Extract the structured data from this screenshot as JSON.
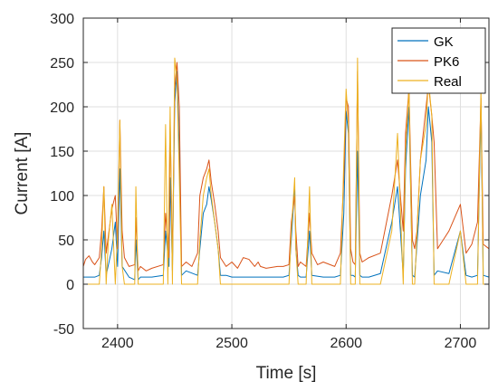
{
  "chart_data": {
    "type": "line",
    "title": "",
    "xlabel": "Time [s]",
    "ylabel": "Current [A]",
    "xlim": [
      2370,
      2725
    ],
    "ylim": [
      -50,
      300
    ],
    "xticks": [
      2400,
      2500,
      2600,
      2700
    ],
    "yticks": [
      -50,
      0,
      50,
      100,
      150,
      200,
      250,
      300
    ],
    "grid": true,
    "legend_position": "top-right",
    "series": [
      {
        "name": "GK",
        "color": "#0072bd",
        "x": [
          2370,
          2380,
          2384,
          2386,
          2388,
          2390,
          2395,
          2398,
          2400,
          2402,
          2404,
          2410,
          2415,
          2416,
          2418,
          2420,
          2430,
          2440,
          2442,
          2445,
          2446,
          2448,
          2450,
          2452,
          2454,
          2456,
          2460,
          2470,
          2472,
          2475,
          2478,
          2480,
          2482,
          2485,
          2488,
          2490,
          2495,
          2500,
          2510,
          2520,
          2530,
          2545,
          2550,
          2552,
          2555,
          2556,
          2558,
          2560,
          2565,
          2568,
          2570,
          2580,
          2590,
          2595,
          2598,
          2600,
          2602,
          2604,
          2606,
          2608,
          2610,
          2612,
          2614,
          2620,
          2630,
          2640,
          2645,
          2650,
          2652,
          2655,
          2658,
          2660,
          2665,
          2670,
          2672,
          2675,
          2677,
          2680,
          2690,
          2700,
          2705,
          2710,
          2715,
          2718,
          2720,
          2725
        ],
        "y": [
          8,
          8,
          10,
          30,
          60,
          10,
          40,
          70,
          20,
          130,
          20,
          8,
          5,
          50,
          5,
          8,
          8,
          10,
          60,
          20,
          120,
          15,
          205,
          240,
          150,
          10,
          15,
          10,
          40,
          80,
          90,
          110,
          95,
          70,
          40,
          10,
          10,
          8,
          8,
          8,
          8,
          8,
          10,
          50,
          110,
          40,
          10,
          8,
          8,
          60,
          10,
          8,
          8,
          10,
          80,
          195,
          170,
          10,
          10,
          8,
          150,
          10,
          8,
          8,
          12,
          70,
          110,
          10,
          130,
          200,
          10,
          8,
          100,
          140,
          200,
          160,
          10,
          15,
          12,
          60,
          10,
          8,
          10,
          200,
          10,
          8
        ],
        "width": 1.0
      },
      {
        "name": "PK6",
        "color": "#d95319",
        "x": [
          2370,
          2372,
          2375,
          2378,
          2380,
          2384,
          2386,
          2388,
          2390,
          2395,
          2398,
          2400,
          2402,
          2404,
          2406,
          2410,
          2415,
          2416,
          2418,
          2420,
          2425,
          2430,
          2440,
          2442,
          2445,
          2446,
          2448,
          2450,
          2452,
          2454,
          2456,
          2460,
          2465,
          2470,
          2472,
          2475,
          2478,
          2480,
          2482,
          2485,
          2488,
          2490,
          2495,
          2500,
          2505,
          2510,
          2515,
          2520,
          2523,
          2525,
          2530,
          2540,
          2545,
          2550,
          2552,
          2555,
          2556,
          2558,
          2560,
          2565,
          2568,
          2570,
          2575,
          2580,
          2590,
          2595,
          2598,
          2600,
          2602,
          2604,
          2606,
          2608,
          2610,
          2612,
          2614,
          2620,
          2630,
          2640,
          2645,
          2650,
          2652,
          2655,
          2658,
          2660,
          2662,
          2665,
          2670,
          2672,
          2675,
          2677,
          2680,
          2685,
          2690,
          2700,
          2705,
          2710,
          2715,
          2718,
          2720,
          2725
        ],
        "y": [
          20,
          28,
          32,
          25,
          22,
          30,
          60,
          110,
          35,
          85,
          100,
          40,
          185,
          60,
          30,
          20,
          22,
          75,
          15,
          20,
          15,
          18,
          22,
          80,
          30,
          185,
          25,
          220,
          250,
          200,
          20,
          25,
          20,
          35,
          100,
          120,
          130,
          140,
          115,
          90,
          60,
          30,
          20,
          25,
          18,
          30,
          28,
          20,
          25,
          20,
          18,
          20,
          20,
          22,
          70,
          100,
          60,
          20,
          25,
          20,
          80,
          35,
          22,
          25,
          20,
          35,
          120,
          210,
          200,
          40,
          25,
          22,
          240,
          35,
          25,
          30,
          35,
          100,
          140,
          60,
          170,
          220,
          50,
          40,
          60,
          140,
          200,
          225,
          190,
          160,
          40,
          50,
          60,
          90,
          35,
          45,
          70,
          210,
          45,
          40
        ],
        "width": 1.0
      },
      {
        "name": "Real",
        "color": "#edb120",
        "x": [
          2370,
          2380,
          2384,
          2386,
          2388,
          2390,
          2392,
          2395,
          2398,
          2400,
          2402,
          2404,
          2406,
          2410,
          2415,
          2416,
          2418,
          2420,
          2430,
          2440,
          2442,
          2444,
          2446,
          2448,
          2450,
          2452,
          2454,
          2456,
          2460,
          2470,
          2472,
          2475,
          2478,
          2480,
          2482,
          2485,
          2488,
          2490,
          2495,
          2500,
          2510,
          2520,
          2530,
          2545,
          2550,
          2552,
          2555,
          2556,
          2558,
          2560,
          2565,
          2568,
          2570,
          2580,
          2590,
          2595,
          2598,
          2600,
          2602,
          2604,
          2606,
          2608,
          2610,
          2612,
          2614,
          2620,
          2630,
          2640,
          2645,
          2650,
          2652,
          2655,
          2658,
          2660,
          2665,
          2670,
          2672,
          2675,
          2677,
          2680,
          2690,
          2700,
          2705,
          2710,
          2715,
          2718,
          2720,
          2725
        ],
        "y": [
          0,
          0,
          0,
          40,
          110,
          0,
          50,
          90,
          0,
          60,
          185,
          20,
          0,
          0,
          0,
          110,
          0,
          0,
          0,
          0,
          180,
          0,
          200,
          0,
          255,
          230,
          120,
          0,
          0,
          0,
          50,
          100,
          120,
          130,
          100,
          70,
          40,
          0,
          0,
          0,
          0,
          0,
          0,
          0,
          0,
          60,
          120,
          40,
          0,
          0,
          0,
          110,
          0,
          0,
          0,
          0,
          140,
          220,
          180,
          0,
          0,
          0,
          255,
          0,
          0,
          0,
          0,
          60,
          170,
          0,
          150,
          220,
          0,
          0,
          140,
          180,
          230,
          190,
          0,
          0,
          0,
          60,
          0,
          0,
          0,
          220,
          0,
          0
        ],
        "width": 1.0
      }
    ]
  }
}
